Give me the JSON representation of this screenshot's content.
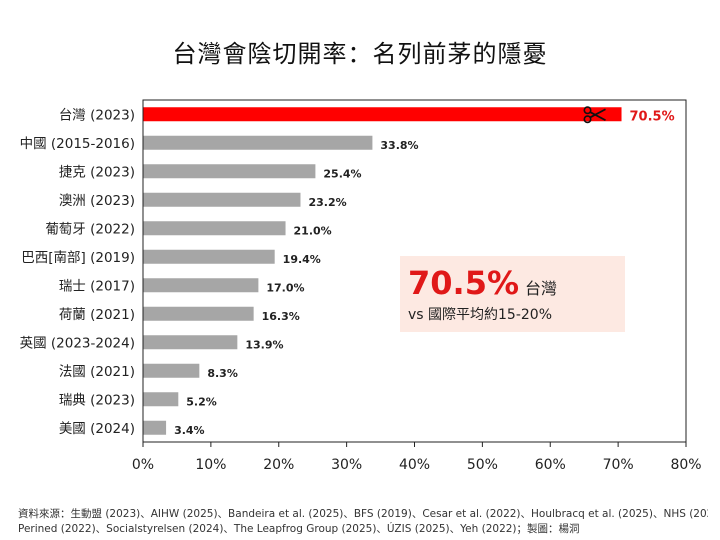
{
  "chart_data": {
    "type": "bar",
    "orientation": "horizontal",
    "title": "台灣會陰切開率：名列前茅的隱憂",
    "categories": [
      "台灣 (2023)",
      "中國 (2015-2016)",
      "捷克 (2023)",
      "澳洲 (2023)",
      "葡萄牙 (2022)",
      "巴西[南部] (2019)",
      "瑞士 (2017)",
      "荷蘭 (2021)",
      "英國 (2023-2024)",
      "法國 (2021)",
      "瑞典 (2023)",
      "美國 (2024)"
    ],
    "values": [
      70.5,
      33.8,
      25.4,
      23.2,
      21.0,
      19.4,
      17.0,
      16.3,
      13.9,
      8.3,
      5.2,
      3.4
    ],
    "value_labels": [
      "70.5%",
      "33.8%",
      "25.4%",
      "23.2%",
      "21.0%",
      "19.4%",
      "17.0%",
      "16.3%",
      "13.9%",
      "8.3%",
      "5.2%",
      "3.4%"
    ],
    "highlight_index": 0,
    "xlim": [
      0,
      80
    ],
    "xticks": [
      "0%",
      "10%",
      "20%",
      "30%",
      "40%",
      "50%",
      "60%",
      "70%",
      "80%"
    ],
    "xlabel": "",
    "ylabel": "",
    "grid": false,
    "colors": {
      "bar": "#a6a6a6",
      "highlight": "#ff0000",
      "highlight_label": "#e01818",
      "callout_bg": "#fde9e2"
    }
  },
  "callout": {
    "value": "70.5%",
    "place": "台灣",
    "subtitle": "vs 國際平均約15-20%"
  },
  "footer": {
    "line1": "資料來源：生動盟 (2023)、AIHW (2025)、Bandeira et al. (2025)、BFS (2019)、Cesar et al. (2022)、Houlbracq et al. (2025)、NHS (2024)、",
    "line2": "Perined (2022)、Socialstyrelsen (2024)、The Leapfrog Group (2025)、ÚZIS (2025)、Yeh (2022)；製圖：楊洞"
  },
  "icons": {
    "scissors": "scissors-icon"
  }
}
